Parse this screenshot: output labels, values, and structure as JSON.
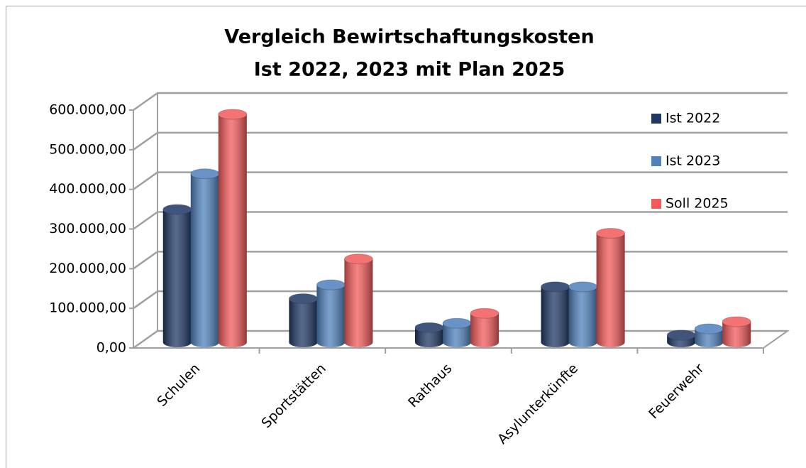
{
  "chart_data": {
    "type": "bar3d",
    "title": [
      "Vergleich Bewirtschaftungskosten",
      "Ist 2022, 2023 mit Plan 2025"
    ],
    "categories": [
      "Schulen",
      "Sportstätten",
      "Rathaus",
      "Asylunterkünfte",
      "Feuerwehr"
    ],
    "series": [
      {
        "name": "Ist 2022",
        "color": "#1f3864",
        "values": [
          335000,
          110000,
          37000,
          140000,
          18000
        ]
      },
      {
        "name": "Ist 2023",
        "color": "#4f81bd",
        "values": [
          425000,
          145000,
          48000,
          140000,
          34000
        ]
      },
      {
        "name": "Soll 2025",
        "color": "#f25a5a",
        "values": [
          575000,
          210000,
          73000,
          275000,
          52000
        ]
      }
    ],
    "ylim": [
      0,
      600000
    ],
    "yticks": [
      {
        "value": 0,
        "label": "0,00"
      },
      {
        "value": 100000,
        "label": "100.000,00"
      },
      {
        "value": 200000,
        "label": "200.000,00"
      },
      {
        "value": 300000,
        "label": "300.000,00"
      },
      {
        "value": 400000,
        "label": "400.000,00"
      },
      {
        "value": 500000,
        "label": "500.000,00"
      },
      {
        "value": 600000,
        "label": "600.000,00"
      }
    ],
    "grid": true,
    "legend": "top-right"
  }
}
